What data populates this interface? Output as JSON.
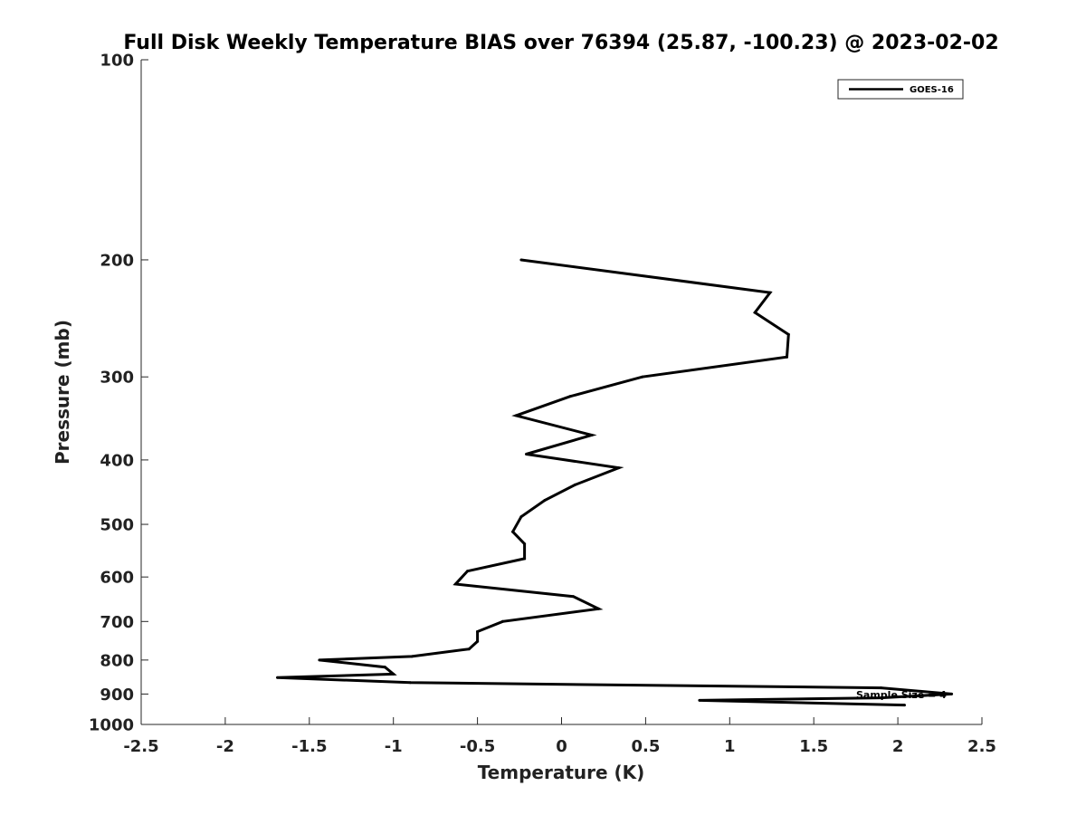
{
  "chart_data": {
    "type": "line",
    "title": "Full Disk Weekly Temperature BIAS over 76394 (25.87, -100.23) @ 2023-02-02",
    "xlabel": "Temperature (K)",
    "ylabel": "Pressure (mb)",
    "xlim": [
      -2.5,
      2.5
    ],
    "ylim": [
      1000,
      100
    ],
    "y_scale": "log",
    "y_reversed": true,
    "x_ticks": [
      -2.5,
      -2,
      -1.5,
      -1,
      -0.5,
      0,
      0.5,
      1,
      1.5,
      2,
      2.5
    ],
    "x_tick_labels": [
      "-2.5",
      "-2",
      "-1.5",
      "-1",
      "-0.5",
      "0",
      "0.5",
      "1",
      "1.5",
      "2",
      "2.5"
    ],
    "y_ticks": [
      100,
      200,
      300,
      400,
      500,
      600,
      700,
      800,
      900,
      1000
    ],
    "y_tick_labels": [
      "100",
      "200",
      "300",
      "400",
      "500",
      "600",
      "700",
      "800",
      "900",
      "1000"
    ],
    "grid": false,
    "legend_position": "top-right",
    "series": [
      {
        "name": "GOES-16",
        "color": "#000000",
        "points": [
          {
            "x": -0.24,
            "p": 200
          },
          {
            "x": 1.24,
            "p": 224
          },
          {
            "x": 1.15,
            "p": 240
          },
          {
            "x": 1.35,
            "p": 259
          },
          {
            "x": 1.34,
            "p": 280
          },
          {
            "x": 0.48,
            "p": 300
          },
          {
            "x": 0.05,
            "p": 321
          },
          {
            "x": -0.27,
            "p": 343
          },
          {
            "x": 0.18,
            "p": 367
          },
          {
            "x": -0.21,
            "p": 392
          },
          {
            "x": 0.34,
            "p": 411
          },
          {
            "x": 0.08,
            "p": 436
          },
          {
            "x": -0.1,
            "p": 460
          },
          {
            "x": -0.24,
            "p": 487
          },
          {
            "x": -0.29,
            "p": 513
          },
          {
            "x": -0.22,
            "p": 535
          },
          {
            "x": -0.22,
            "p": 563
          },
          {
            "x": -0.56,
            "p": 588
          },
          {
            "x": -0.63,
            "p": 615
          },
          {
            "x": 0.07,
            "p": 642
          },
          {
            "x": 0.22,
            "p": 670
          },
          {
            "x": -0.35,
            "p": 700
          },
          {
            "x": -0.5,
            "p": 725
          },
          {
            "x": -0.5,
            "p": 750
          },
          {
            "x": -0.55,
            "p": 770
          },
          {
            "x": -0.89,
            "p": 790
          },
          {
            "x": -1.44,
            "p": 800
          },
          {
            "x": -1.05,
            "p": 820
          },
          {
            "x": -1.0,
            "p": 840
          },
          {
            "x": -1.69,
            "p": 850
          },
          {
            "x": -0.9,
            "p": 865
          },
          {
            "x": 1.9,
            "p": 881
          },
          {
            "x": 2.32,
            "p": 900
          },
          {
            "x": 1.9,
            "p": 912
          },
          {
            "x": 0.82,
            "p": 920
          },
          {
            "x": 2.04,
            "p": 935
          }
        ]
      }
    ],
    "annotations": [
      {
        "text": "Sample Size = 4"
      }
    ]
  }
}
